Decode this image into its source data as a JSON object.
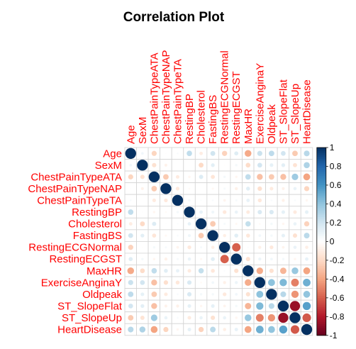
{
  "chart_data": {
    "type": "heatmap",
    "title": "Correlation Plot",
    "variables": [
      "Age",
      "SexM",
      "ChestPainTypeATA",
      "ChestPainTypeNAP",
      "ChestPainTypeTA",
      "RestingBP",
      "Cholesterol",
      "FastingBS",
      "RestingECGNormal",
      "RestingECGST",
      "MaxHR",
      "ExerciseAnginaY",
      "Oldpeak",
      "ST_SlopeFlat",
      "ST_SlopeUp",
      "HeartDisease"
    ],
    "matrix": [
      [
        1.0,
        0.06,
        -0.22,
        -0.01,
        0.03,
        0.25,
        -0.1,
        0.2,
        -0.23,
        0.14,
        -0.38,
        0.22,
        0.26,
        0.19,
        -0.26,
        0.28
      ],
      [
        0.06,
        1.0,
        -0.16,
        -0.07,
        -0.0,
        0.01,
        -0.2,
        0.12,
        -0.01,
        0.05,
        -0.19,
        0.19,
        0.11,
        0.12,
        -0.15,
        0.31
      ],
      [
        -0.22,
        -0.16,
        1.0,
        -0.26,
        -0.11,
        -0.05,
        0.15,
        -0.14,
        0.05,
        -0.05,
        0.25,
        -0.3,
        -0.26,
        -0.3,
        0.36,
        -0.4
      ],
      [
        -0.01,
        -0.07,
        -0.26,
        1.0,
        -0.12,
        -0.03,
        0.01,
        -0.04,
        0.04,
        -0.08,
        0.13,
        -0.17,
        -0.11,
        -0.07,
        0.09,
        -0.22
      ],
      [
        0.03,
        -0.0,
        -0.11,
        -0.12,
        1.0,
        0.05,
        0.02,
        0.03,
        -0.06,
        0.04,
        0.1,
        -0.13,
        0.03,
        -0.08,
        0.03,
        -0.05
      ],
      [
        0.25,
        0.01,
        -0.05,
        -0.03,
        0.05,
        1.0,
        0.1,
        0.07,
        -0.12,
        0.09,
        -0.11,
        0.16,
        0.16,
        0.11,
        -0.11,
        0.11
      ],
      [
        -0.1,
        -0.2,
        0.15,
        0.01,
        0.02,
        0.1,
        1.0,
        -0.26,
        0.04,
        -0.04,
        0.24,
        -0.03,
        0.05,
        -0.05,
        0.09,
        -0.23
      ],
      [
        0.2,
        0.12,
        -0.14,
        -0.04,
        0.03,
        0.07,
        -0.26,
        1.0,
        -0.09,
        0.13,
        -0.13,
        0.06,
        0.05,
        0.11,
        -0.16,
        0.27
      ],
      [
        -0.23,
        -0.01,
        0.05,
        0.04,
        -0.06,
        -0.12,
        0.04,
        -0.09,
        1.0,
        -0.6,
        0.02,
        -0.08,
        -0.12,
        -0.06,
        0.09,
        -0.09
      ],
      [
        0.14,
        0.05,
        -0.05,
        -0.08,
        0.04,
        0.09,
        -0.04,
        0.13,
        -0.6,
        1.0,
        -0.16,
        0.08,
        0.06,
        0.05,
        -0.05,
        0.1
      ],
      [
        -0.38,
        -0.19,
        0.25,
        0.13,
        0.1,
        -0.11,
        0.24,
        -0.13,
        0.02,
        -0.16,
        1.0,
        -0.37,
        -0.16,
        -0.34,
        0.38,
        -0.4
      ],
      [
        0.22,
        0.19,
        -0.3,
        -0.17,
        -0.13,
        0.16,
        -0.03,
        0.06,
        -0.08,
        0.08,
        -0.37,
        1.0,
        0.41,
        0.45,
        -0.51,
        0.49
      ],
      [
        0.26,
        0.11,
        -0.26,
        -0.11,
        0.03,
        0.16,
        0.05,
        0.05,
        -0.12,
        0.06,
        -0.16,
        0.41,
        1.0,
        0.28,
        -0.45,
        0.4
      ],
      [
        0.19,
        0.12,
        -0.3,
        -0.07,
        -0.08,
        0.11,
        -0.05,
        0.11,
        -0.06,
        0.05,
        -0.34,
        0.45,
        0.28,
        1.0,
        -0.87,
        0.55
      ],
      [
        -0.26,
        -0.15,
        0.36,
        0.09,
        0.03,
        -0.11,
        0.09,
        -0.16,
        0.09,
        -0.05,
        0.38,
        -0.51,
        -0.45,
        -0.87,
        1.0,
        -0.62
      ],
      [
        0.28,
        0.31,
        -0.4,
        -0.22,
        -0.05,
        0.11,
        -0.23,
        0.27,
        -0.09,
        0.1,
        -0.4,
        0.49,
        0.4,
        0.55,
        -0.62,
        1.0
      ]
    ],
    "colorbar": {
      "range": [
        -1,
        1
      ],
      "ticks": [
        "1",
        "0.8",
        "0.6",
        "0.4",
        "0.2",
        "0",
        "-0.2",
        "-0.4",
        "-0.6",
        "-0.8",
        "-1"
      ],
      "high_color": "#053061",
      "low_color": "#67001F"
    },
    "label_color": "#ff0000",
    "marker": "circle",
    "grid": true
  }
}
